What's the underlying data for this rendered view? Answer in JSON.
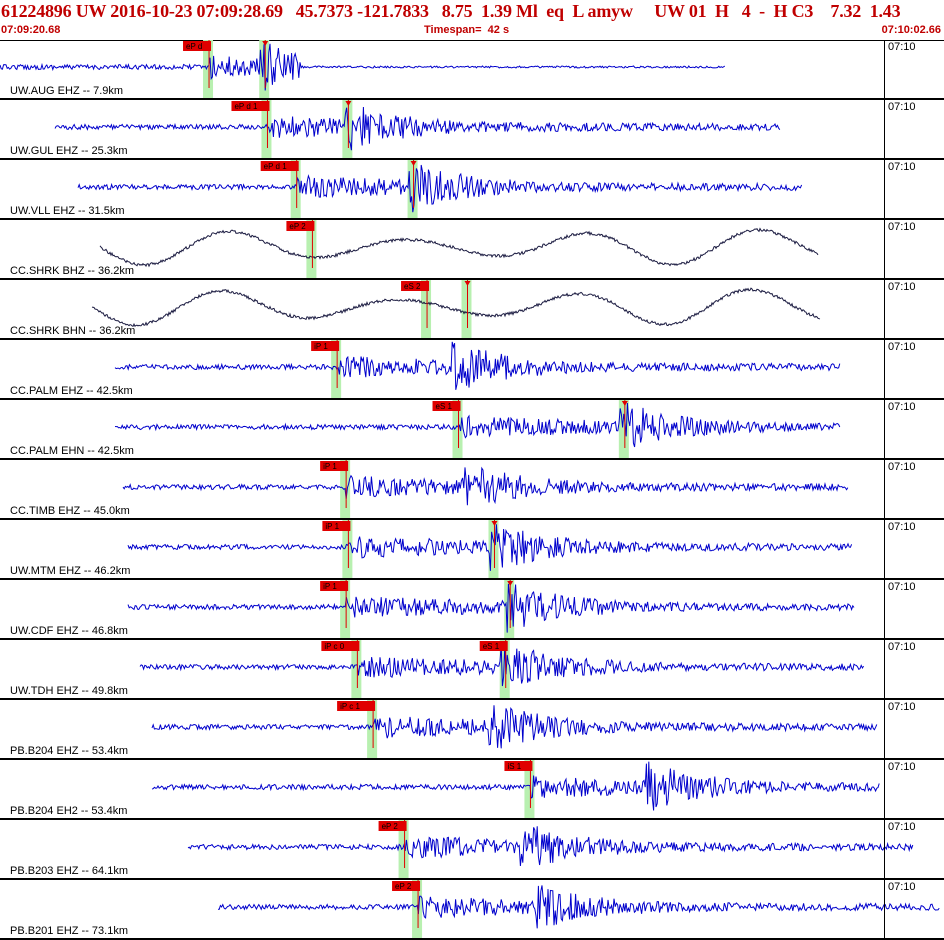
{
  "header": {
    "title": "61224896 UW 2016-10-23 07:09:28.69   45.7373 -121.7833   8.75  1.39 Ml  eq  L amyw     UW 01  H   4  -  H C3    7.32  1.43",
    "start_time": "07:09:20.68",
    "timespan": "Timespan=  42 s",
    "end_time": "07:10:02.66"
  },
  "colors": {
    "trace_primary": "#0000cc",
    "trace_broadband": "#1a1a40",
    "pick_box": "#e00000",
    "window": "#b8f0b0",
    "header_text": "#c00000"
  },
  "traces": [
    {
      "station": "UW.AUG EHZ -- 7.9km",
      "time": "07:10",
      "type": "short",
      "picks": [
        {
          "label": "eP d",
          "t": 9.3
        },
        {
          "label": "",
          "t": 11.8
        }
      ]
    },
    {
      "station": "UW.GUL EHZ -- 25.3km",
      "time": "07:10",
      "type": "short",
      "picks": [
        {
          "label": "eP d 1",
          "t": 11.9
        },
        {
          "label": "",
          "t": 15.5
        }
      ]
    },
    {
      "station": "UW.VLL EHZ -- 31.5km",
      "time": "07:10",
      "type": "short",
      "picks": [
        {
          "label": "eP d 1",
          "t": 13.2
        },
        {
          "label": "",
          "t": 18.4
        }
      ]
    },
    {
      "station": "CC.SHRK BHZ -- 36.2km",
      "time": "07:10",
      "type": "broad",
      "picks": [
        {
          "label": "eP 2",
          "t": 13.9
        }
      ]
    },
    {
      "station": "CC.SHRK BHN -- 36.2km",
      "time": "07:10",
      "type": "broad",
      "picks": [
        {
          "label": "eS 2",
          "t": 19.0
        },
        {
          "label": "",
          "t": 20.8
        }
      ]
    },
    {
      "station": "CC.PALM EHZ -- 42.5km",
      "time": "07:10",
      "type": "short",
      "picks": [
        {
          "label": "iP 1",
          "t": 15.0
        }
      ]
    },
    {
      "station": "CC.PALM EHN -- 42.5km",
      "time": "07:10",
      "type": "short",
      "picks": [
        {
          "label": "eS 1",
          "t": 20.4
        },
        {
          "label": "",
          "t": 27.8
        }
      ]
    },
    {
      "station": "CC.TIMB EHZ -- 45.0km",
      "time": "07:10",
      "type": "short",
      "picks": [
        {
          "label": "iP 1",
          "t": 15.4
        }
      ]
    },
    {
      "station": "UW.MTM EHZ -- 46.2km",
      "time": "07:10",
      "type": "short",
      "picks": [
        {
          "label": "iP 1",
          "t": 15.5
        },
        {
          "label": "",
          "t": 22.0
        }
      ]
    },
    {
      "station": "UW.CDF EHZ -- 46.8km",
      "time": "07:10",
      "type": "short",
      "picks": [
        {
          "label": "iP 1",
          "t": 15.4
        },
        {
          "label": "",
          "t": 22.7
        }
      ]
    },
    {
      "station": "UW.TDH EHZ -- 49.8km",
      "time": "07:10",
      "type": "short",
      "picks": [
        {
          "label": "iP c 0",
          "t": 15.9
        },
        {
          "label": "eS 1",
          "t": 22.5
        }
      ]
    },
    {
      "station": "PB.B204 EHZ -- 53.4km",
      "time": "07:10",
      "type": "short",
      "picks": [
        {
          "label": "iP c 1",
          "t": 16.6
        }
      ]
    },
    {
      "station": "PB.B204 EH2 -- 53.4km",
      "time": "07:10",
      "type": "short",
      "picks": [
        {
          "label": "iS 1",
          "t": 23.6
        }
      ]
    },
    {
      "station": "PB.B203 EHZ -- 64.1km",
      "time": "07:10",
      "type": "short",
      "picks": [
        {
          "label": "eP 2",
          "t": 18.0
        }
      ]
    },
    {
      "station": "PB.B201 EHZ -- 73.1km",
      "time": "07:10",
      "type": "short",
      "picks": [
        {
          "label": "eP 2",
          "t": 18.6
        }
      ]
    }
  ]
}
